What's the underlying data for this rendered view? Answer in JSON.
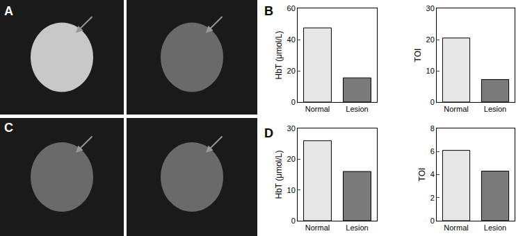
{
  "images": [
    {
      "panel": "A"
    },
    {
      "panel": "C"
    }
  ],
  "chart_data": [
    {
      "panel": "B",
      "type": "bar",
      "y_label": "HbT (μmol/L)",
      "categories": [
        "Normal",
        "Lesion"
      ],
      "values": [
        47.5,
        15.5
      ],
      "colors": [
        "#e6e6e6",
        "#7a7a7a"
      ],
      "ylim": [
        0,
        60
      ],
      "yticks": [
        0,
        20,
        40,
        60
      ]
    },
    {
      "type": "bar",
      "y_label": "TOI",
      "categories": [
        "Normal",
        "Lesion"
      ],
      "values": [
        20.5,
        7.2
      ],
      "colors": [
        "#e6e6e6",
        "#7a7a7a"
      ],
      "ylim": [
        0,
        30
      ],
      "yticks": [
        0,
        10,
        20,
        30
      ]
    },
    {
      "panel": "D",
      "type": "bar",
      "y_label": "HbT (μmol/L)",
      "categories": [
        "Normal",
        "Lesion"
      ],
      "values": [
        26,
        16
      ],
      "colors": [
        "#e6e6e6",
        "#7a7a7a"
      ],
      "ylim": [
        0,
        30
      ],
      "yticks": [
        0,
        10,
        20,
        30
      ]
    },
    {
      "type": "bar",
      "y_label": "TOI",
      "categories": [
        "Normal",
        "Lesion"
      ],
      "values": [
        6.1,
        4.3
      ],
      "colors": [
        "#e6e6e6",
        "#7a7a7a"
      ],
      "ylim": [
        0,
        8
      ],
      "yticks": [
        0,
        2,
        4,
        6,
        8
      ]
    }
  ]
}
